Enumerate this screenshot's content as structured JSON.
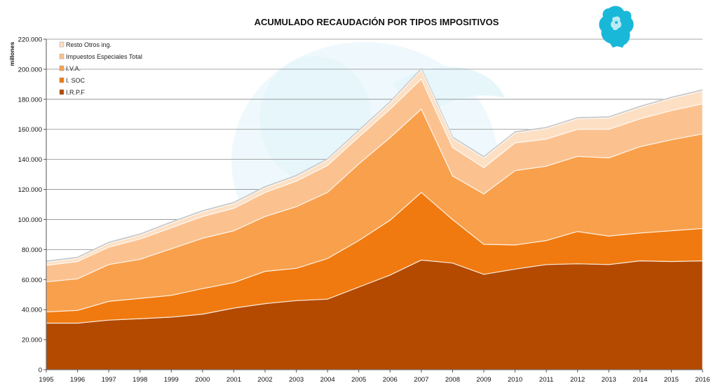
{
  "chart_data": {
    "type": "area",
    "stacked": true,
    "title": "ACUMULADO RECAUDACIÓN POR TIPOS IMPOSITIVOS",
    "ylabel": "millones",
    "xlabel": "",
    "ylim": [
      0,
      220000
    ],
    "yticks": [
      0,
      20000,
      40000,
      60000,
      80000,
      100000,
      120000,
      140000,
      160000,
      180000,
      200000,
      220000
    ],
    "ytick_labels": [
      "0",
      "20.000",
      "40.000",
      "60.000",
      "80.000",
      "100.000",
      "120.000",
      "140.000",
      "160.000",
      "180.000",
      "200.000",
      "220.000"
    ],
    "grid": true,
    "legend_position": "top-left",
    "categories": [
      "1995",
      "1996",
      "1997",
      "1998",
      "1999",
      "2000",
      "2001",
      "2002",
      "2003",
      "2004",
      "2005",
      "2006",
      "2007",
      "2008",
      "2009",
      "2010",
      "2011",
      "2012",
      "2013",
      "2014",
      "2015",
      "2016"
    ],
    "series": [
      {
        "name": "I.R.P.F",
        "color": "#b34a00",
        "values": [
          31000,
          31000,
          33000,
          34000,
          35000,
          37000,
          41000,
          44000,
          46000,
          47000,
          55000,
          63000,
          73000,
          71000,
          63500,
          67000,
          70000,
          70500,
          70000,
          72500,
          72000,
          72500
        ]
      },
      {
        "name": "I. SOC",
        "color": "#f07a0f",
        "values": [
          7500,
          8500,
          12500,
          13500,
          14500,
          17000,
          17000,
          21500,
          21500,
          27000,
          31000,
          36500,
          45000,
          29000,
          20000,
          16000,
          16000,
          21500,
          19000,
          18500,
          20500,
          21500
        ]
      },
      {
        "name": "I.V.A.",
        "color": "#f9a04c",
        "values": [
          20000,
          21000,
          24500,
          26000,
          31000,
          33500,
          34500,
          36500,
          41000,
          44000,
          51000,
          55000,
          55500,
          29000,
          33500,
          49500,
          49500,
          50000,
          52000,
          57500,
          60500,
          63000
        ]
      },
      {
        "name": "Impuestos Especiales Total",
        "color": "#fbc290",
        "values": [
          11000,
          11500,
          11500,
          13500,
          14000,
          14500,
          15000,
          16000,
          17000,
          18000,
          18000,
          19000,
          20000,
          19000,
          17500,
          18500,
          18000,
          18000,
          19000,
          18500,
          19500,
          20000
        ]
      },
      {
        "name": "Resto Otros ing.",
        "color": "#fde0c4",
        "values": [
          2000,
          2000,
          2500,
          2500,
          3000,
          3000,
          3000,
          3000,
          3000,
          3500,
          3500,
          4000,
          6000,
          6000,
          6500,
          6500,
          7000,
          7000,
          7500,
          7500,
          8000,
          8500
        ]
      }
    ],
    "legend_order": [
      "Resto Otros ing.",
      "Impuestos Especiales Total",
      "I.V.A.",
      "I. SOC",
      "I.R.P.F"
    ]
  },
  "logo": {
    "name": "griffin-logo",
    "color": "#1ab8d8"
  },
  "watermark": {
    "name": "griffin-watermark",
    "color": "#d8f2fb"
  }
}
